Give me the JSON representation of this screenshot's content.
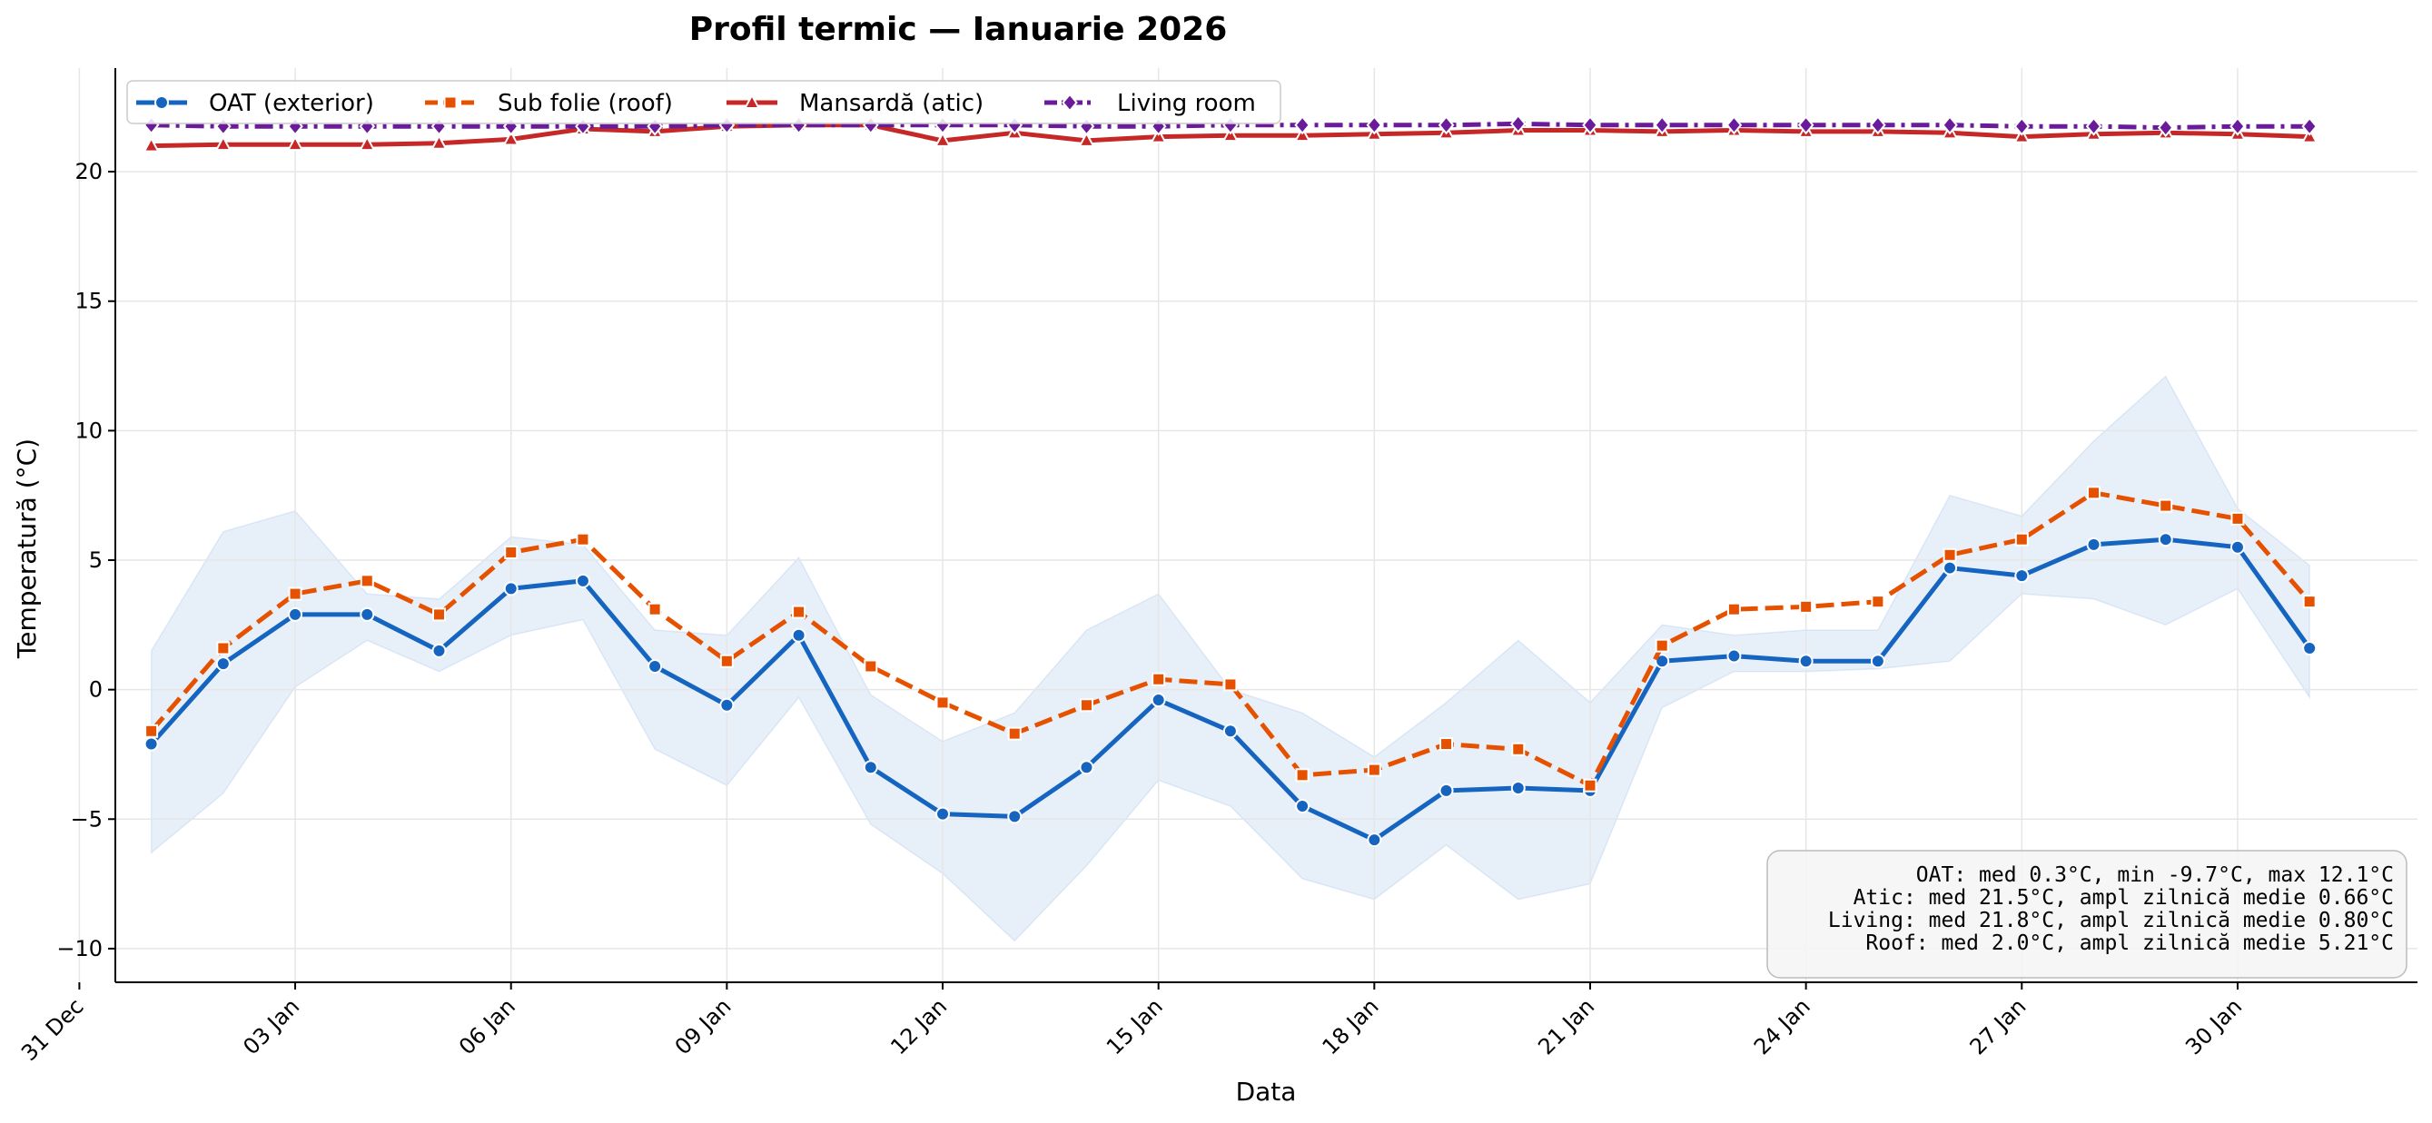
{
  "chart_data": {
    "type": "line",
    "title": "Profil termic — Ianuarie 2026",
    "xlabel": "Data",
    "ylabel": "Temperatură (°C)",
    "x_start": "2026-01-01",
    "dates": [
      "2026-01-01",
      "2026-01-02",
      "2026-01-03",
      "2026-01-04",
      "2026-01-05",
      "2026-01-06",
      "2026-01-07",
      "2026-01-08",
      "2026-01-09",
      "2026-01-10",
      "2026-01-11",
      "2026-01-12",
      "2026-01-13",
      "2026-01-14",
      "2026-01-15",
      "2026-01-16",
      "2026-01-17",
      "2026-01-18",
      "2026-01-19",
      "2026-01-20",
      "2026-01-21",
      "2026-01-22",
      "2026-01-23",
      "2026-01-24",
      "2026-01-25",
      "2026-01-26",
      "2026-01-27",
      "2026-01-28",
      "2026-01-29",
      "2026-01-30",
      "2026-01-31"
    ],
    "xlim": [
      "2025-12-31T12:00",
      "2026-02-01T12:00"
    ],
    "ylim": [
      -11.3,
      24.0
    ],
    "x_ticks": [
      "31 Dec",
      "03 Jan",
      "06 Jan",
      "09 Jan",
      "12 Jan",
      "15 Jan",
      "18 Jan",
      "21 Jan",
      "24 Jan",
      "27 Jan",
      "30 Jan"
    ],
    "x_tick_dates": [
      "2025-12-31",
      "2026-01-03",
      "2026-01-06",
      "2026-01-09",
      "2026-01-12",
      "2026-01-15",
      "2026-01-18",
      "2026-01-21",
      "2026-01-24",
      "2026-01-27",
      "2026-01-30"
    ],
    "y_ticks": [
      -10,
      -5,
      0,
      5,
      10,
      15,
      20
    ],
    "y_tick_labels": [
      "−10",
      "−5",
      "0",
      "5",
      "10",
      "15",
      "20"
    ],
    "grid": true,
    "legend_position": "top-left",
    "series": [
      {
        "name": "OAT (exterior)",
        "color": "#1565c0",
        "line_style": "solid",
        "marker": "circle",
        "values": [
          -2.1,
          1.0,
          2.9,
          2.9,
          1.5,
          3.9,
          4.2,
          0.9,
          -0.6,
          2.1,
          -3.0,
          -4.8,
          -4.9,
          -3.0,
          -0.4,
          -1.6,
          -4.5,
          -5.8,
          -3.9,
          -3.8,
          -3.9,
          1.1,
          1.3,
          1.1,
          1.1,
          4.7,
          4.4,
          5.6,
          5.8,
          5.5,
          1.6
        ]
      },
      {
        "name": "Sub folie (roof)",
        "color": "#e65100",
        "line_style": "dashed",
        "marker": "square",
        "values": [
          -1.6,
          1.6,
          3.7,
          4.2,
          2.9,
          5.3,
          5.8,
          3.1,
          1.1,
          3.0,
          0.9,
          -0.5,
          -1.7,
          -0.6,
          0.4,
          0.2,
          -3.3,
          -3.1,
          -2.1,
          -2.3,
          -3.7,
          1.7,
          3.1,
          3.2,
          3.4,
          5.2,
          5.8,
          7.6,
          7.1,
          6.6,
          3.4
        ]
      },
      {
        "name": "Mansardă (atic)",
        "color": "#c62828",
        "line_style": "solid",
        "marker": "triangle",
        "values": [
          21.0,
          21.05,
          21.05,
          21.05,
          21.1,
          21.25,
          21.65,
          21.55,
          21.75,
          21.8,
          21.8,
          21.2,
          21.5,
          21.2,
          21.35,
          21.4,
          21.4,
          21.45,
          21.5,
          21.6,
          21.6,
          21.55,
          21.6,
          21.55,
          21.55,
          21.5,
          21.35,
          21.45,
          21.5,
          21.45,
          21.35
        ]
      },
      {
        "name": "Living room",
        "color": "#6a1b9a",
        "line_style": "dashdot",
        "marker": "diamond",
        "values": [
          21.8,
          21.75,
          21.75,
          21.75,
          21.75,
          21.75,
          21.75,
          21.75,
          21.8,
          21.8,
          21.8,
          21.8,
          21.8,
          21.75,
          21.75,
          21.8,
          21.8,
          21.8,
          21.8,
          21.85,
          21.8,
          21.8,
          21.8,
          21.8,
          21.8,
          21.8,
          21.75,
          21.75,
          21.7,
          21.75,
          21.75
        ]
      }
    ],
    "oat_band": {
      "color": "#1565c0",
      "min": [
        -6.3,
        -4.0,
        0.1,
        1.9,
        0.7,
        2.1,
        2.7,
        -2.3,
        -3.7,
        -0.3,
        -5.2,
        -7.1,
        -9.7,
        -6.8,
        -3.5,
        -4.5,
        -7.3,
        -8.1,
        -6.0,
        -8.1,
        -7.5,
        -0.7,
        0.7,
        0.7,
        0.8,
        1.1,
        3.7,
        3.5,
        2.5,
        3.9,
        -0.3
      ],
      "max": [
        1.5,
        6.1,
        6.9,
        3.7,
        3.5,
        5.9,
        5.6,
        2.3,
        2.1,
        5.1,
        -0.2,
        -2.0,
        -0.9,
        2.3,
        3.7,
        0.0,
        -0.9,
        -2.6,
        -0.5,
        1.9,
        -0.5,
        2.5,
        2.1,
        2.3,
        2.3,
        7.5,
        6.7,
        9.6,
        12.1,
        7.0,
        4.8
      ]
    },
    "annotations": {
      "stats_lines": [
        "OAT: med 0.3°C, min -9.7°C, max 12.1°C",
        "Atic: med 21.5°C, ampl zilnică medie 0.66°C",
        "Living: med 21.8°C, ampl zilnică medie 0.80°C",
        "Roof: med 2.0°C, ampl zilnică medie 5.21°C"
      ],
      "stats_position": "bottom-right"
    }
  }
}
